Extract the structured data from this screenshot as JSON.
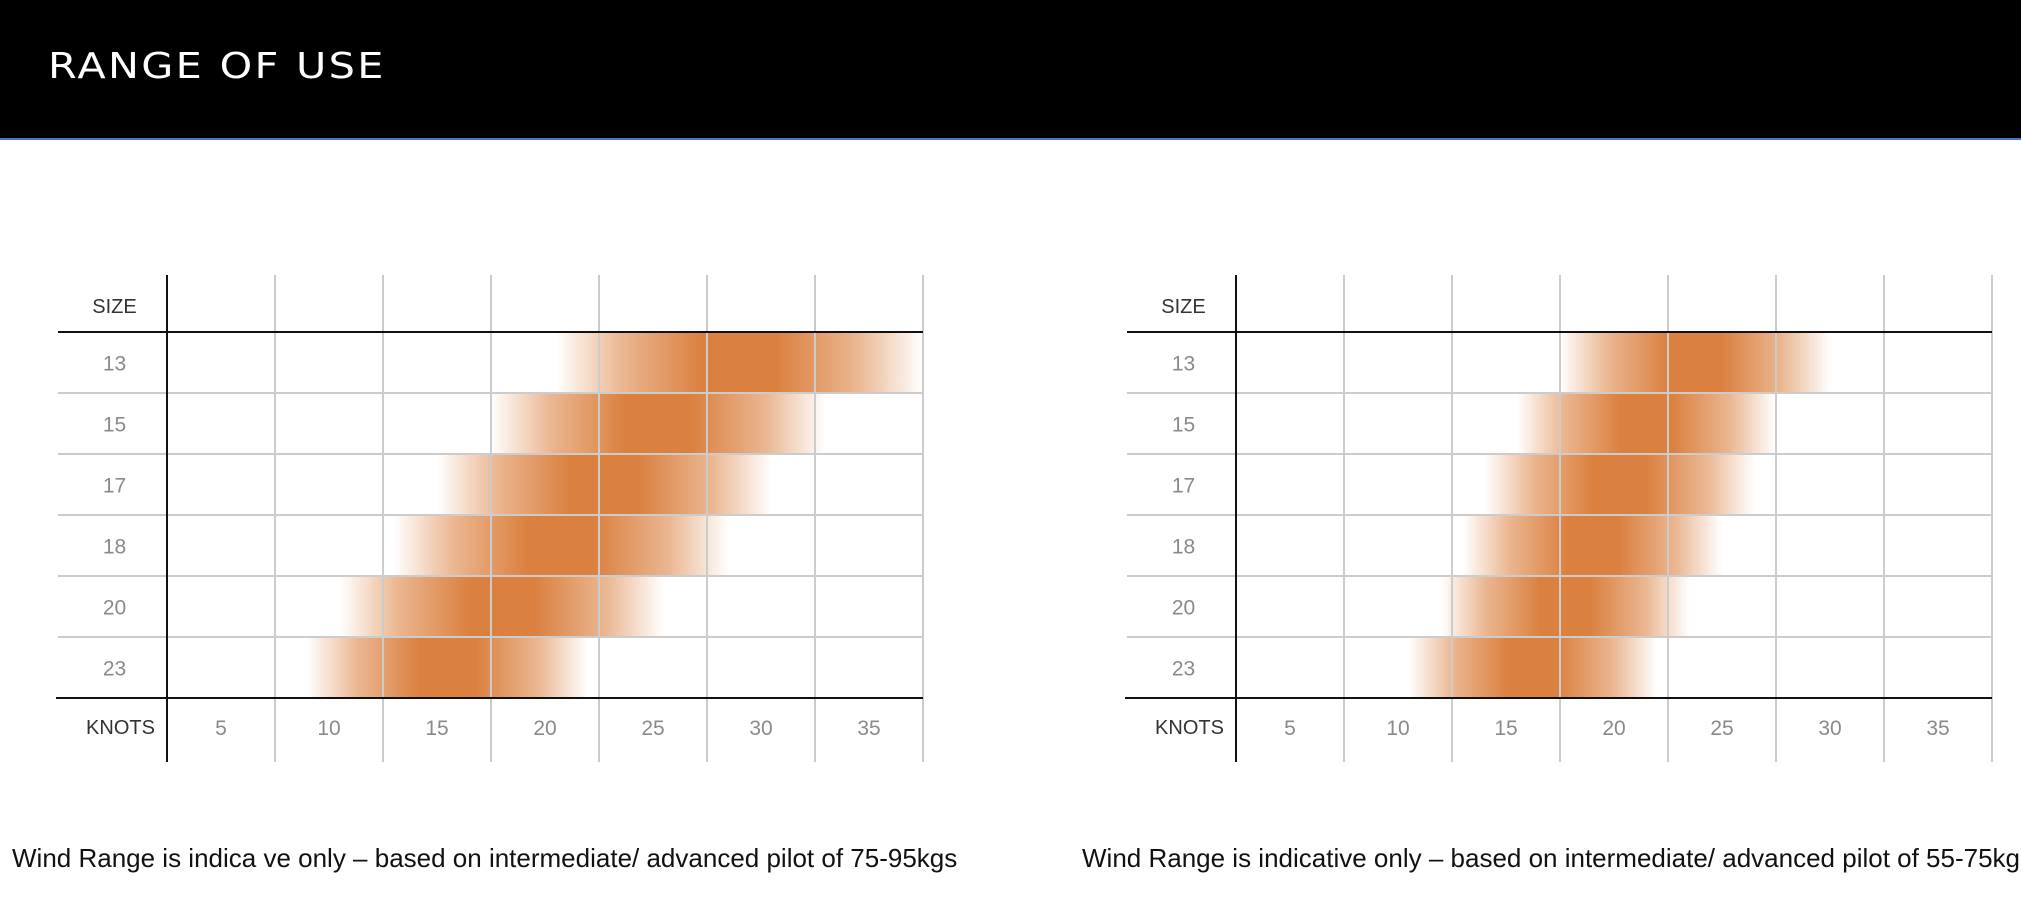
{
  "header": {
    "title": "RANGE OF USE"
  },
  "colors": {
    "band": "#d97a36",
    "grid": "#cccccc",
    "axis": "#111111",
    "header_bg": "#000000"
  },
  "chart_data": [
    {
      "type": "heatmap",
      "row_header": "SIZE",
      "col_header": "KNOTS",
      "sizes": [
        "13",
        "15",
        "17",
        "18",
        "20",
        "23"
      ],
      "knots": [
        5,
        10,
        15,
        20,
        25,
        30,
        35
      ],
      "ranges": [
        {
          "size": "13",
          "from": 20.5,
          "to": 37.5
        },
        {
          "size": "15",
          "from": 17.5,
          "to": 33
        },
        {
          "size": "17",
          "from": 15,
          "to": 30.5
        },
        {
          "size": "18",
          "from": 13,
          "to": 28.5
        },
        {
          "size": "20",
          "from": 10.5,
          "to": 25.5
        },
        {
          "size": "23",
          "from": 9,
          "to": 22
        }
      ],
      "caption": "Wind Range is indica  ve only – based on intermediate/ advanced pilot of 75-95kgs"
    },
    {
      "type": "heatmap",
      "row_header": "SIZE",
      "col_header": "KNOTS",
      "sizes": [
        "13",
        "15",
        "17",
        "18",
        "20",
        "23"
      ],
      "knots": [
        5,
        10,
        15,
        20,
        25,
        30,
        35
      ],
      "ranges": [
        {
          "size": "13",
          "from": 17.5,
          "to": 30
        },
        {
          "size": "15",
          "from": 15.5,
          "to": 27.5
        },
        {
          "size": "17",
          "from": 14,
          "to": 26.5
        },
        {
          "size": "18",
          "from": 13,
          "to": 25
        },
        {
          "size": "20",
          "from": 12,
          "to": 23.5
        },
        {
          "size": "23",
          "from": 10.5,
          "to": 22
        }
      ],
      "caption": "Wind Range is indicative only – based on intermediate/ advanced pilot of 55-75kgs"
    }
  ]
}
